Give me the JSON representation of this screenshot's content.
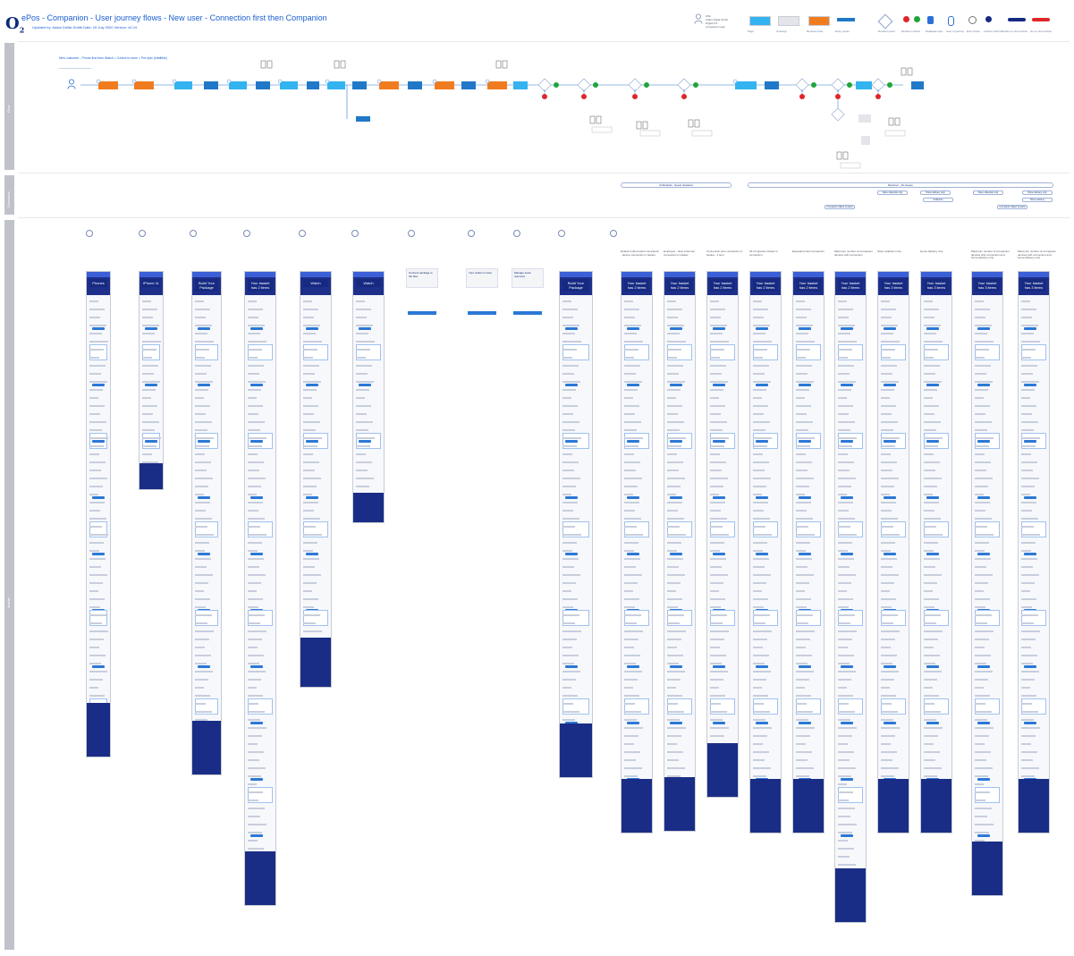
{
  "header": {
    "logo": "O",
    "logo_sub": "2",
    "title": "ePos - Companion - User journey flows - New user - Connection first then Companion",
    "updated": "Updated by: Adam Dollar-Smith  Date: 15 July 2020  Version: v0.24",
    "who_lines": [
      "Who",
      "Adam Dollar-Smith",
      "Digital UX",
      "companion team"
    ]
  },
  "legend": {
    "items": [
      {
        "label": "Page",
        "color": "#33b3ef",
        "shape": "rect"
      },
      {
        "label": "Overlays",
        "color": "#e3e5ea",
        "shape": "rect"
      },
      {
        "label": "Reviews area",
        "color": "#f07c20",
        "shape": "rect"
      },
      {
        "label": "Entry points",
        "color": "#2178c8",
        "shape": "small"
      },
      {
        "label": "Decision point",
        "color": "#ffffff",
        "shape": "diamond"
      },
      {
        "label": "Decision choice",
        "color": "#1fa53a",
        "shape": "dots"
      },
      {
        "label": "Database step",
        "color": "#2b6fd6",
        "shape": "db"
      },
      {
        "label": "User in journey",
        "color": "#2b6fd6",
        "shape": "person"
      },
      {
        "label": "End of flow",
        "color": "#777777",
        "shape": "circle"
      },
      {
        "label": "Further information",
        "color": "#162a82",
        "shape": "dot"
      },
      {
        "label": "Go to next section",
        "color": "#162a82",
        "shape": "pill"
      },
      {
        "label": "Go to next section",
        "color": "#e0262b",
        "shape": "pill"
      }
    ]
  },
  "sections": [
    {
      "label": "Flow"
    },
    {
      "label": "Scenarios"
    },
    {
      "label": "Mobile"
    }
  ],
  "flow": {
    "title": "New customer - Phone first then Watch > Collect in store > Pre-epic (infallible)"
  },
  "scenarios": {
    "left": "Unfinished - Guest checkout",
    "right": "Returner - No issues",
    "labels": [
      "Store collection only",
      "Home delivery only",
      "Store collection only",
      "Home delivery only",
      "Collection",
      "Home delivery",
      "Companion failed (restart)",
      "Companion failed (restart)"
    ]
  },
  "screens": {
    "phones_title": "Phones",
    "phone_title": "iPhone 11",
    "build_title": "Build Your Package",
    "basket2_title": "Your basket has 2 items",
    "watch_title": "Watch",
    "basket3_title": "Your basket has 3 items",
    "overlay_1": "Connect package to the flow",
    "overlay_2": "Your collect in store",
    "overlay_3": "Manage stock reserved"
  },
  "column_titles": [
    "Default multi-product companion - device connection in basket",
    "Employee - New customer companion in basket",
    "Connection plus companion in basket - 1 item",
    "All Companion linked to connection",
    "Expanded view companion",
    "Maximum number of companion devices with connection",
    "Store collection only",
    "Home delivery only",
    "Maximum number of companion devices with connection and home delivery only",
    "Maximum number of companion devices with connection and home delivery only"
  ]
}
